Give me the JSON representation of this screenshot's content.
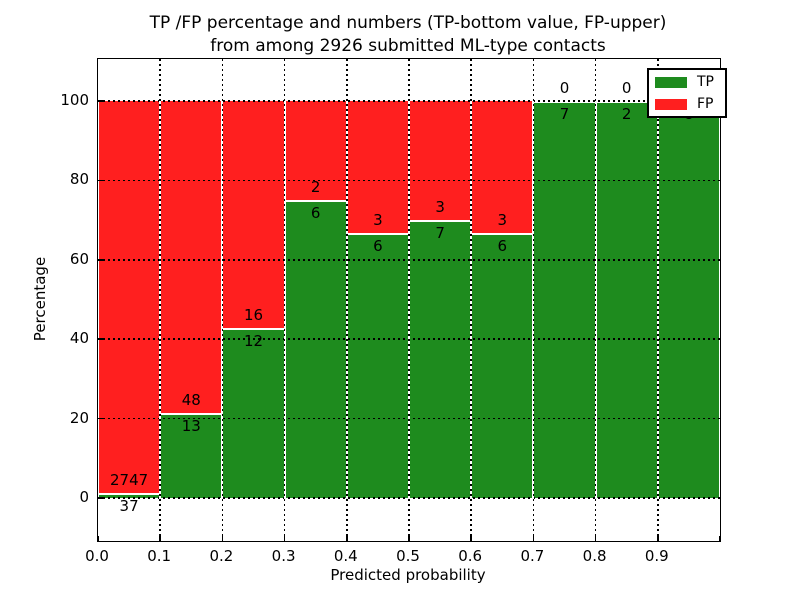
{
  "figure": {
    "title_line1": "TP /FP percentage and numbers (TP-bottom value, FP-upper)",
    "title_line2": "from among 2926 submitted ML-type contacts"
  },
  "chart_data": {
    "type": "bar",
    "stacked": true,
    "normalized": "each bin scaled to 100%",
    "title": "TP /FP percentage and numbers (TP-bottom value, FP-upper) from among 2926 submitted ML-type contacts",
    "xlabel": "Predicted probability",
    "ylabel": "Percentage",
    "x_tick_labels": [
      "0.0",
      "0.1",
      "0.2",
      "0.3",
      "0.4",
      "0.5",
      "0.6",
      "0.7",
      "0.8",
      "0.9"
    ],
    "y_tick_labels": [
      "0",
      "20",
      "40",
      "60",
      "80",
      "100"
    ],
    "y_ticks": [
      0,
      20,
      40,
      60,
      80,
      100
    ],
    "xlim": [
      0.0,
      1.0
    ],
    "ylim_display": [
      -11,
      110
    ],
    "grid": true,
    "bins": [
      [
        0.0,
        0.1
      ],
      [
        0.1,
        0.2
      ],
      [
        0.2,
        0.3
      ],
      [
        0.3,
        0.4
      ],
      [
        0.4,
        0.5
      ],
      [
        0.5,
        0.6
      ],
      [
        0.6,
        0.7
      ],
      [
        0.7,
        0.8
      ],
      [
        0.8,
        0.9
      ],
      [
        0.9,
        1.0
      ]
    ],
    "series": [
      {
        "name": "TP",
        "color": "#1e8b1e",
        "counts": [
          37,
          13,
          12,
          6,
          6,
          7,
          6,
          7,
          2,
          8
        ]
      },
      {
        "name": "FP",
        "color": "#ff1f1f",
        "counts": [
          2747,
          48,
          16,
          2,
          3,
          3,
          3,
          0,
          0,
          0
        ]
      }
    ],
    "total_contacts": 2926,
    "legend": {
      "position": "upper right",
      "entries": [
        "TP",
        "FP"
      ]
    }
  },
  "colors": {
    "tp_green": "#1e8b1e",
    "fp_red": "#ff1f1f",
    "grid": "#000000",
    "background": "#ffffff",
    "text": "#000000"
  }
}
